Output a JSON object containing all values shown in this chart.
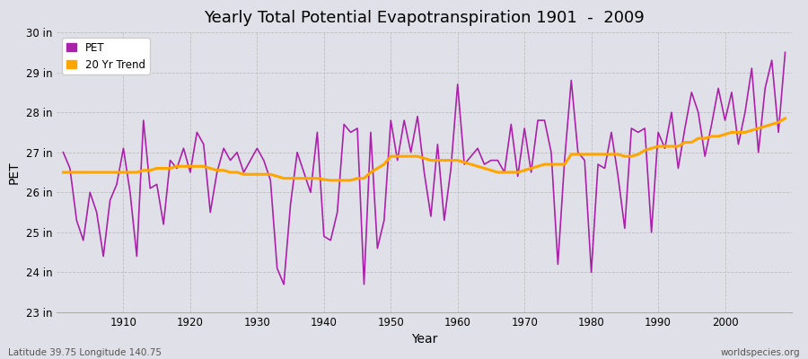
{
  "title": "Yearly Total Potential Evapotranspiration 1901  -  2009",
  "xlabel": "Year",
  "ylabel": "PET",
  "subtitle_left": "Latitude 39.75 Longitude 140.75",
  "subtitle_right": "worldspecies.org",
  "pet_color": "#AA22AA",
  "trend_color": "#FFA500",
  "bg_color": "#E0E0E8",
  "plot_bg_color": "#E0E0E8",
  "ylim": [
    23,
    30
  ],
  "yticks": [
    23,
    24,
    25,
    26,
    27,
    28,
    29,
    30
  ],
  "ytick_labels": [
    "23 in",
    "24 in",
    "25 in",
    "26 in",
    "27 in",
    "28 in",
    "29 in",
    "30 in"
  ],
  "years": [
    1901,
    1902,
    1903,
    1904,
    1905,
    1906,
    1907,
    1908,
    1909,
    1910,
    1911,
    1912,
    1913,
    1914,
    1915,
    1916,
    1917,
    1918,
    1919,
    1920,
    1921,
    1922,
    1923,
    1924,
    1925,
    1926,
    1927,
    1928,
    1929,
    1930,
    1931,
    1932,
    1933,
    1934,
    1935,
    1936,
    1937,
    1938,
    1939,
    1940,
    1941,
    1942,
    1943,
    1944,
    1945,
    1946,
    1947,
    1948,
    1949,
    1950,
    1951,
    1952,
    1953,
    1954,
    1955,
    1956,
    1957,
    1958,
    1959,
    1960,
    1961,
    1962,
    1963,
    1964,
    1965,
    1966,
    1967,
    1968,
    1969,
    1970,
    1971,
    1972,
    1973,
    1974,
    1975,
    1976,
    1977,
    1978,
    1979,
    1980,
    1981,
    1982,
    1983,
    1984,
    1985,
    1986,
    1987,
    1988,
    1989,
    1990,
    1991,
    1992,
    1993,
    1994,
    1995,
    1996,
    1997,
    1998,
    1999,
    2000,
    2001,
    2002,
    2003,
    2004,
    2005,
    2006,
    2007,
    2008,
    2009
  ],
  "pet_values": [
    27.0,
    26.6,
    25.3,
    24.8,
    26.0,
    25.5,
    24.4,
    25.8,
    26.2,
    27.1,
    26.0,
    24.4,
    27.8,
    26.1,
    26.2,
    25.2,
    26.8,
    26.6,
    27.1,
    26.5,
    27.5,
    27.2,
    25.5,
    26.5,
    27.1,
    26.8,
    27.0,
    26.5,
    26.8,
    27.1,
    26.8,
    26.3,
    24.1,
    23.7,
    25.7,
    27.0,
    26.5,
    26.0,
    27.5,
    24.9,
    24.8,
    25.5,
    27.7,
    27.5,
    27.6,
    23.7,
    27.5,
    24.6,
    25.3,
    27.8,
    26.8,
    27.8,
    27.0,
    27.9,
    26.5,
    25.4,
    27.2,
    25.3,
    26.6,
    28.7,
    26.7,
    26.9,
    27.1,
    26.7,
    26.8,
    26.8,
    26.5,
    27.7,
    26.4,
    27.6,
    26.5,
    27.8,
    27.8,
    27.0,
    24.2,
    26.8,
    28.8,
    27.0,
    26.8,
    24.0,
    26.7,
    26.6,
    27.5,
    26.4,
    25.1,
    27.6,
    27.5,
    27.6,
    25.0,
    27.5,
    27.1,
    28.0,
    26.6,
    27.6,
    28.5,
    28.0,
    26.9,
    27.7,
    28.6,
    27.8,
    28.5,
    27.2,
    28.0,
    29.1,
    27.0,
    28.6,
    29.3,
    27.5,
    29.5
  ],
  "trend_values": [
    26.5,
    26.5,
    26.5,
    26.5,
    26.5,
    26.5,
    26.5,
    26.5,
    26.5,
    26.5,
    26.5,
    26.5,
    26.55,
    26.55,
    26.6,
    26.6,
    26.6,
    26.65,
    26.65,
    26.65,
    26.65,
    26.65,
    26.6,
    26.55,
    26.55,
    26.5,
    26.5,
    26.45,
    26.45,
    26.45,
    26.45,
    26.45,
    26.4,
    26.35,
    26.35,
    26.35,
    26.35,
    26.35,
    26.35,
    26.32,
    26.3,
    26.3,
    26.3,
    26.3,
    26.35,
    26.35,
    26.5,
    26.6,
    26.7,
    26.9,
    26.9,
    26.9,
    26.9,
    26.9,
    26.85,
    26.8,
    26.8,
    26.8,
    26.8,
    26.8,
    26.75,
    26.7,
    26.65,
    26.6,
    26.55,
    26.5,
    26.5,
    26.5,
    26.5,
    26.55,
    26.6,
    26.65,
    26.7,
    26.7,
    26.7,
    26.7,
    26.95,
    26.95,
    26.95,
    26.95,
    26.95,
    26.95,
    26.95,
    26.95,
    26.9,
    26.9,
    26.95,
    27.05,
    27.1,
    27.15,
    27.15,
    27.15,
    27.15,
    27.25,
    27.25,
    27.35,
    27.35,
    27.4,
    27.4,
    27.45,
    27.5,
    27.5,
    27.5,
    27.55,
    27.6,
    27.65,
    27.7,
    27.75,
    27.85
  ]
}
